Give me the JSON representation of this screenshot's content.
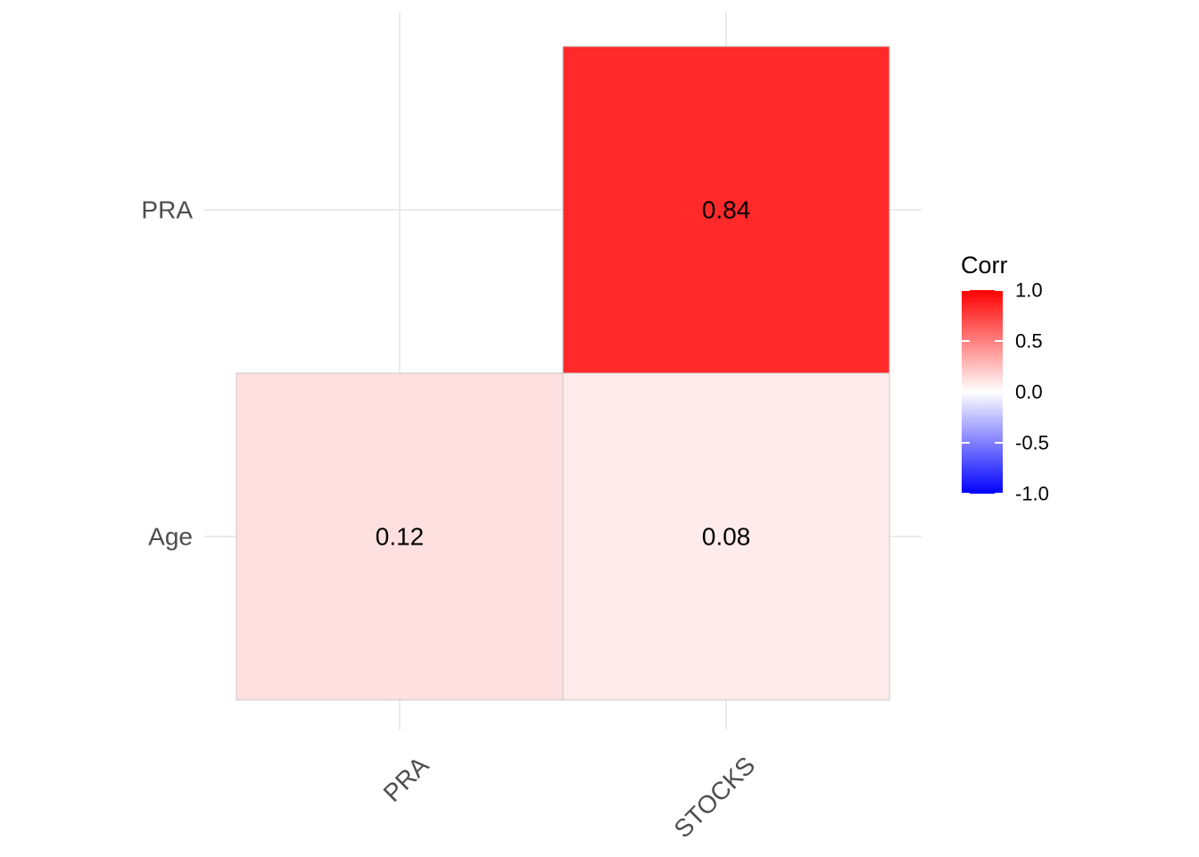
{
  "chart_data": {
    "type": "heatmap",
    "x_categories": [
      "PRA",
      "STOCKS"
    ],
    "y_categories": [
      "Age",
      "PRA"
    ],
    "cells": [
      {
        "x": "PRA",
        "y": "Age",
        "value": 0.12,
        "label": "0.12"
      },
      {
        "x": "STOCKS",
        "y": "Age",
        "value": 0.08,
        "label": "0.08"
      },
      {
        "x": "STOCKS",
        "y": "PRA",
        "value": 0.84,
        "label": "0.84"
      }
    ],
    "legend": {
      "title": "Corr",
      "placement": "right",
      "range": [
        -1,
        1
      ],
      "ticks": [
        {
          "value": 1.0,
          "label": "1.0"
        },
        {
          "value": 0.5,
          "label": "0.5"
        },
        {
          "value": 0.0,
          "label": "0.0"
        },
        {
          "value": -0.5,
          "label": "-0.5"
        },
        {
          "value": -1.0,
          "label": "-1.0"
        }
      ]
    },
    "colors": {
      "low": "#0000ff",
      "mid": "#ffffff",
      "high": "#ff0000"
    },
    "grid": true
  }
}
